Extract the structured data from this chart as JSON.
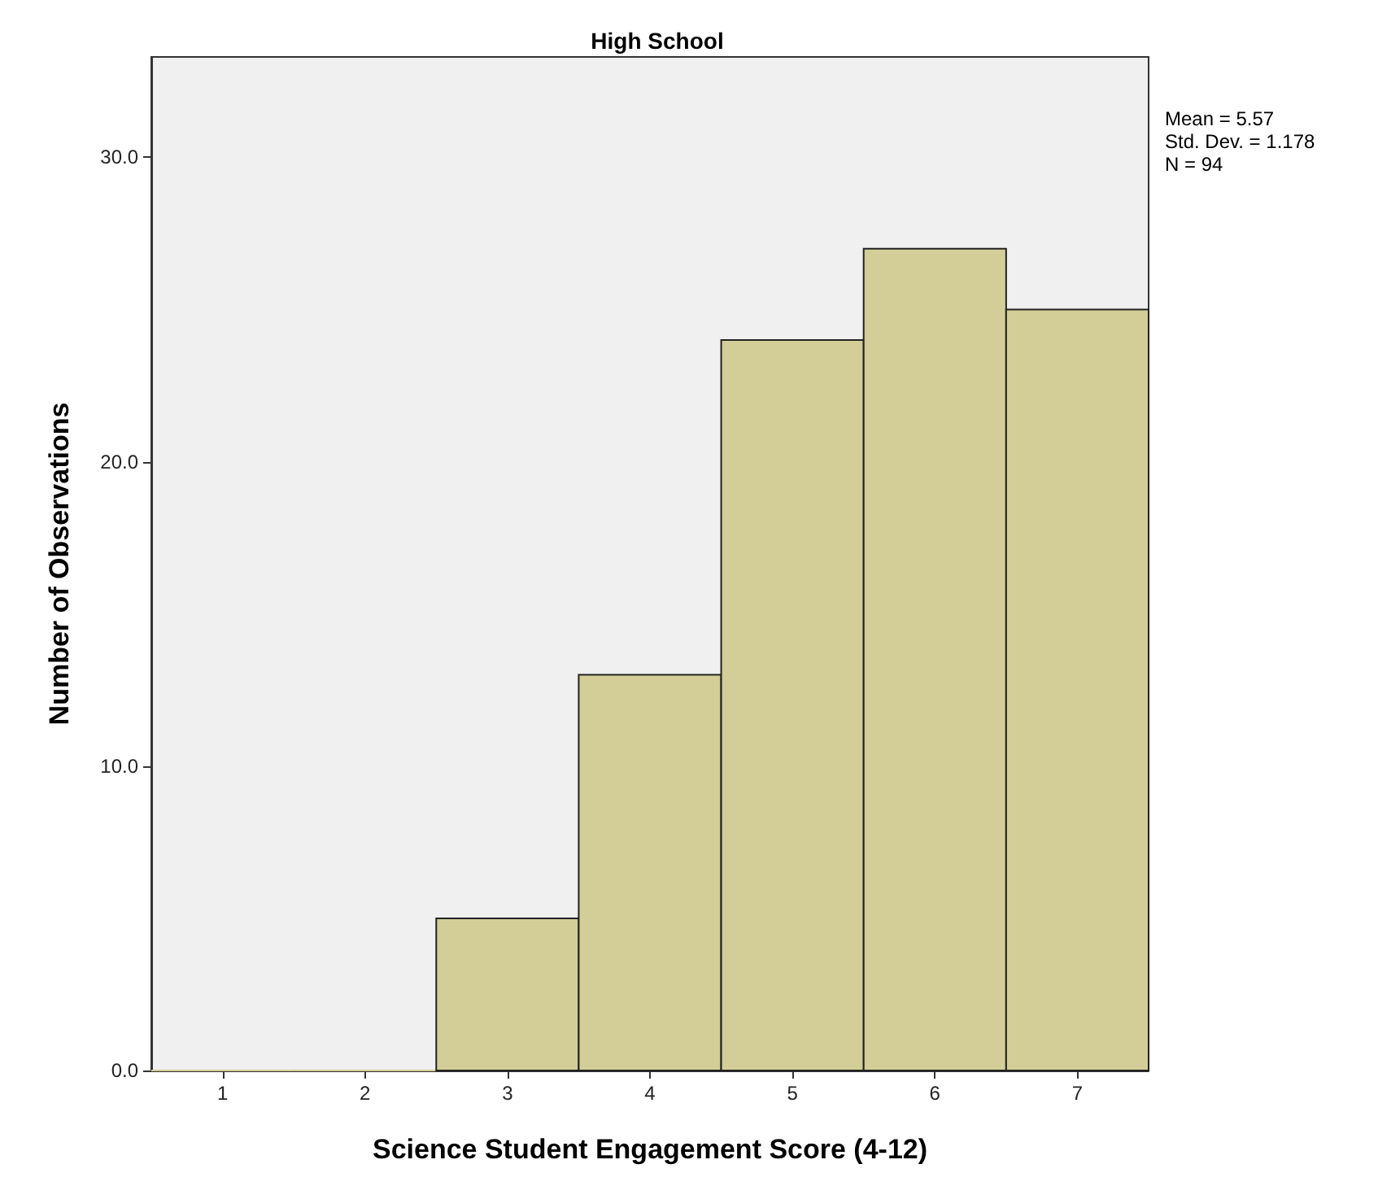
{
  "chart_data": {
    "type": "histogram",
    "title": "High School",
    "xlabel": "Science Student Engagement Score (4-12)",
    "ylabel": "Number of Observations",
    "bins": [
      0.5,
      1.5,
      2.5,
      3.5,
      4.5,
      5.5,
      6.5,
      7.5
    ],
    "values": [
      0,
      0,
      5,
      13,
      24,
      27,
      25
    ],
    "color": "#d3ce97",
    "xlim": [
      0.5,
      7.5
    ],
    "xticks": [
      1,
      2,
      3,
      4,
      5,
      6,
      7
    ],
    "ylim": [
      0,
      33.3
    ],
    "yticks": [
      {
        "value": 0,
        "label": "0.0"
      },
      {
        "value": 10,
        "label": "10.0"
      },
      {
        "value": 20,
        "label": "20.0"
      },
      {
        "value": 30,
        "label": "30.0"
      }
    ],
    "annotations": [
      "Mean = 5.57",
      "Std. Dev. = 1.178",
      "N = 94"
    ],
    "grid": false
  }
}
